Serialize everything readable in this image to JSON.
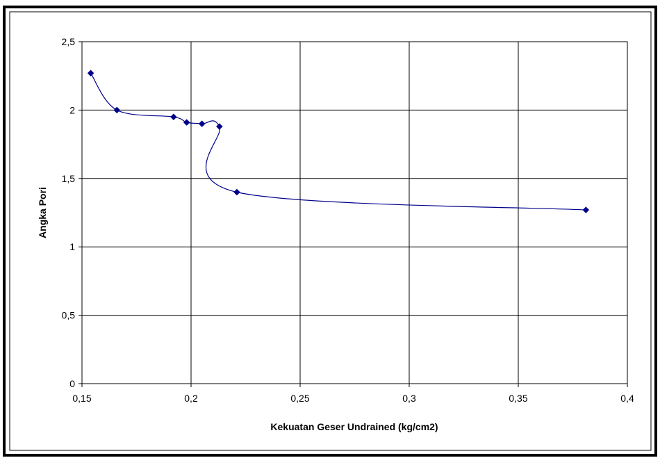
{
  "chart_data": {
    "type": "scatter",
    "title": "",
    "xlabel": "Kekuatan Geser Undrained (kg/cm2)",
    "ylabel": "Angka Pori",
    "xlim": [
      0.15,
      0.4
    ],
    "ylim": [
      0,
      2.5
    ],
    "x_ticks": [
      "0,15",
      "0,2",
      "0,25",
      "0,3",
      "0,35",
      "0,4"
    ],
    "y_ticks": [
      "0",
      "0,5",
      "1",
      "1,5",
      "2",
      "2,5"
    ],
    "grid": true,
    "legend": "none",
    "line": "smooth",
    "marker": "diamond",
    "series": [
      {
        "points": [
          {
            "x": 0.154,
            "y": 2.27
          },
          {
            "x": 0.166,
            "y": 2.0
          },
          {
            "x": 0.192,
            "y": 1.95
          },
          {
            "x": 0.198,
            "y": 1.91
          },
          {
            "x": 0.205,
            "y": 1.9
          },
          {
            "x": 0.213,
            "y": 1.88
          },
          {
            "x": 0.221,
            "y": 1.4
          },
          {
            "x": 0.381,
            "y": 1.27
          }
        ]
      }
    ],
    "colors": {
      "series": "#00008B",
      "grid": "#000000",
      "frame": "#000000"
    }
  }
}
